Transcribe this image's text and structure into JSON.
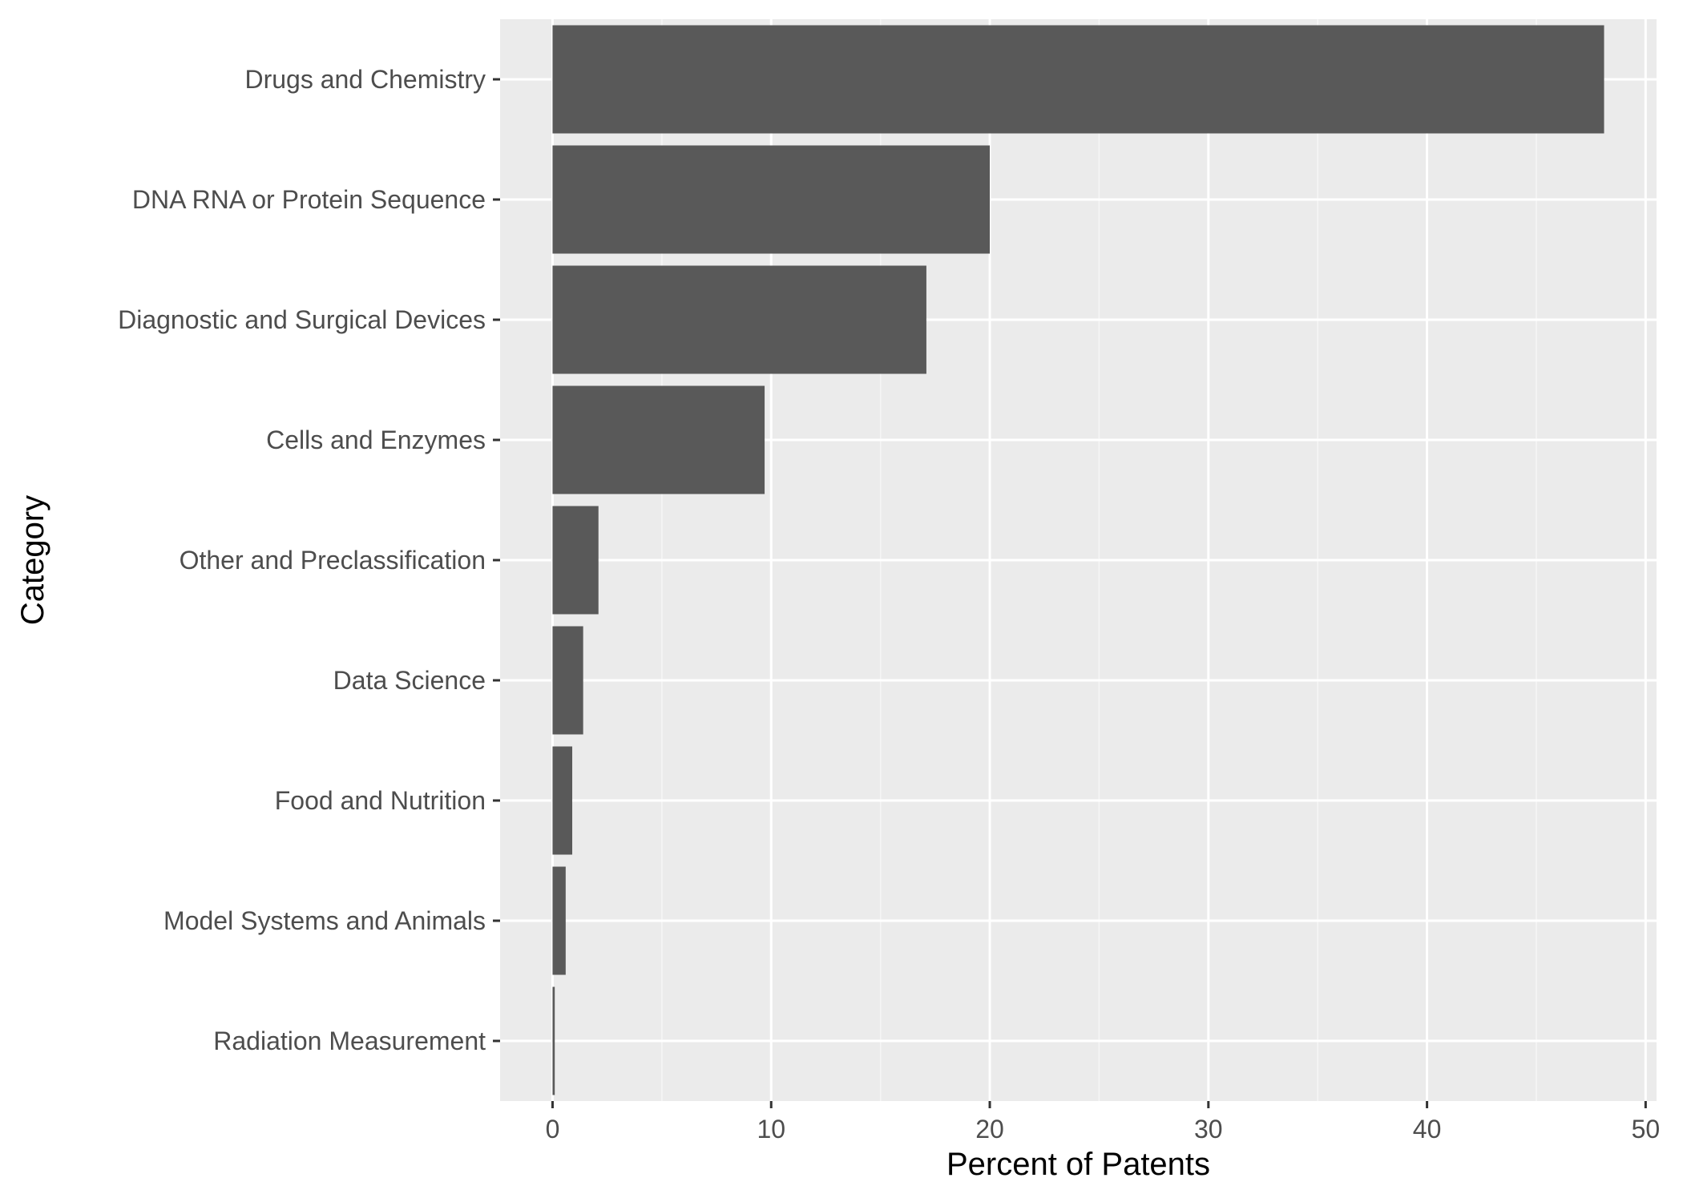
{
  "chart_data": {
    "type": "bar",
    "orientation": "horizontal",
    "categories": [
      "Drugs and Chemistry",
      "DNA RNA or Protein Sequence",
      "Diagnostic and Surgical Devices",
      "Cells and Enzymes",
      "Other and Preclassification",
      "Data Science",
      "Food and Nutrition",
      "Model Systems and Animals",
      "Radiation Measurement"
    ],
    "values": [
      48.1,
      20.0,
      17.1,
      9.7,
      2.1,
      1.4,
      0.9,
      0.6,
      0.1
    ],
    "xlabel": "Percent of Patents",
    "ylabel": "Category",
    "xlim": [
      -2.4,
      50.5
    ],
    "xticks": [
      0,
      10,
      20,
      30,
      40,
      50
    ],
    "grid": true,
    "colors": {
      "bar": "#595959",
      "panel": "#ebebeb",
      "grid_major": "#ffffff",
      "grid_minor": "#f5f5f5"
    }
  }
}
